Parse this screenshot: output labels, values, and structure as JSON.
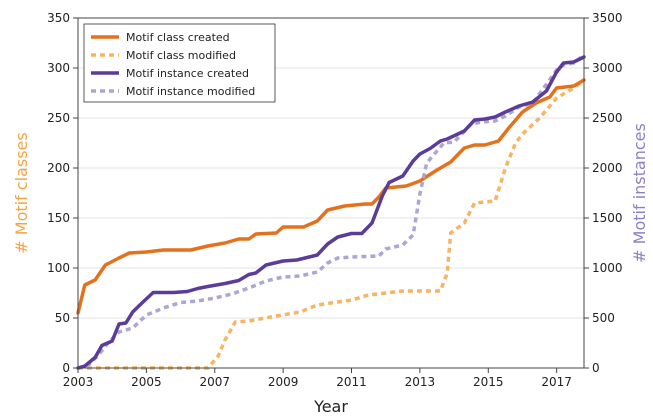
{
  "chart_data": {
    "type": "line",
    "xlabel": "Year",
    "ylabel_left": "# Motif classes",
    "ylabel_right": "# Motif instances",
    "xlim": [
      2003,
      2017.8
    ],
    "ylim_left": [
      0,
      350
    ],
    "ylim_right": [
      0,
      3500
    ],
    "x_ticks": [
      2003,
      2005,
      2007,
      2009,
      2011,
      2013,
      2015,
      2017
    ],
    "y_ticks_left": [
      0,
      50,
      100,
      150,
      200,
      250,
      300,
      350
    ],
    "y_ticks_right": [
      0,
      500,
      1000,
      1500,
      2000,
      2500,
      3000,
      3500
    ],
    "grid": "horizontal",
    "legend_position": "top-left",
    "colors": {
      "class_created": "#e4711c",
      "class_modified": "#f5b563",
      "instance_created": "#5b3c98",
      "instance_modified": "#aba6d3",
      "left_axis_label": "#f2a446",
      "right_axis_label": "#8f7fc6",
      "grid": "#e3e3e3"
    },
    "series": [
      {
        "name": "Motif class created",
        "axis": "left",
        "style": "solid",
        "color": "#e4711c",
        "points": [
          [
            2003.0,
            55
          ],
          [
            2003.2,
            83
          ],
          [
            2003.5,
            88
          ],
          [
            2003.8,
            103
          ],
          [
            2004.2,
            110
          ],
          [
            2004.5,
            115
          ],
          [
            2005.0,
            116
          ],
          [
            2005.5,
            118
          ],
          [
            2006.3,
            118
          ],
          [
            2006.8,
            122
          ],
          [
            2007.3,
            125
          ],
          [
            2007.7,
            129
          ],
          [
            2008.0,
            129
          ],
          [
            2008.2,
            134
          ],
          [
            2008.8,
            135
          ],
          [
            2009.0,
            141
          ],
          [
            2009.6,
            141
          ],
          [
            2010.0,
            147
          ],
          [
            2010.3,
            158
          ],
          [
            2010.8,
            162
          ],
          [
            2011.4,
            164
          ],
          [
            2011.6,
            164
          ],
          [
            2011.8,
            171
          ],
          [
            2012.0,
            180
          ],
          [
            2012.6,
            182
          ],
          [
            2013.0,
            187
          ],
          [
            2013.5,
            198
          ],
          [
            2013.9,
            206
          ],
          [
            2014.3,
            220
          ],
          [
            2014.6,
            223
          ],
          [
            2014.9,
            223
          ],
          [
            2015.3,
            227
          ],
          [
            2015.6,
            240
          ],
          [
            2016.0,
            256
          ],
          [
            2016.4,
            265
          ],
          [
            2016.8,
            271
          ],
          [
            2017.0,
            280
          ],
          [
            2017.5,
            282
          ],
          [
            2017.8,
            288
          ]
        ]
      },
      {
        "name": "Motif class modified",
        "axis": "left",
        "style": "dashed",
        "color": "#f5b563",
        "points": [
          [
            2003.0,
            0
          ],
          [
            2006.8,
            0
          ],
          [
            2007.1,
            12
          ],
          [
            2007.3,
            28
          ],
          [
            2007.6,
            46
          ],
          [
            2008.0,
            47
          ],
          [
            2008.8,
            52
          ],
          [
            2009.5,
            56
          ],
          [
            2010.0,
            63
          ],
          [
            2011.0,
            68
          ],
          [
            2011.5,
            73
          ],
          [
            2012.0,
            75
          ],
          [
            2012.5,
            77
          ],
          [
            2013.0,
            77
          ],
          [
            2013.6,
            77
          ],
          [
            2013.8,
            95
          ],
          [
            2013.9,
            135
          ],
          [
            2014.3,
            145
          ],
          [
            2014.6,
            165
          ],
          [
            2015.2,
            167
          ],
          [
            2015.5,
            200
          ],
          [
            2015.8,
            225
          ],
          [
            2016.0,
            234
          ],
          [
            2016.5,
            250
          ],
          [
            2016.8,
            262
          ],
          [
            2017.0,
            270
          ],
          [
            2017.5,
            280
          ],
          [
            2017.8,
            288
          ]
        ]
      },
      {
        "name": "Motif instance created",
        "axis": "right",
        "style": "solid",
        "color": "#5b3c98",
        "points": [
          [
            2003.0,
            0
          ],
          [
            2003.2,
            20
          ],
          [
            2003.5,
            105
          ],
          [
            2003.7,
            225
          ],
          [
            2004.0,
            270
          ],
          [
            2004.2,
            440
          ],
          [
            2004.4,
            450
          ],
          [
            2004.6,
            560
          ],
          [
            2004.9,
            660
          ],
          [
            2005.2,
            755
          ],
          [
            2005.8,
            755
          ],
          [
            2006.2,
            765
          ],
          [
            2006.5,
            795
          ],
          [
            2006.8,
            815
          ],
          [
            2007.3,
            845
          ],
          [
            2007.7,
            875
          ],
          [
            2008.0,
            935
          ],
          [
            2008.2,
            950
          ],
          [
            2008.5,
            1030
          ],
          [
            2009.0,
            1070
          ],
          [
            2009.4,
            1080
          ],
          [
            2009.7,
            1105
          ],
          [
            2010.0,
            1130
          ],
          [
            2010.3,
            1240
          ],
          [
            2010.6,
            1310
          ],
          [
            2011.0,
            1345
          ],
          [
            2011.3,
            1345
          ],
          [
            2011.6,
            1450
          ],
          [
            2011.9,
            1720
          ],
          [
            2012.1,
            1855
          ],
          [
            2012.5,
            1920
          ],
          [
            2012.8,
            2070
          ],
          [
            2013.0,
            2140
          ],
          [
            2013.3,
            2195
          ],
          [
            2013.6,
            2270
          ],
          [
            2013.8,
            2290
          ],
          [
            2014.3,
            2370
          ],
          [
            2014.6,
            2480
          ],
          [
            2014.9,
            2490
          ],
          [
            2015.2,
            2510
          ],
          [
            2015.5,
            2560
          ],
          [
            2015.9,
            2620
          ],
          [
            2016.3,
            2660
          ],
          [
            2016.7,
            2770
          ],
          [
            2017.0,
            2960
          ],
          [
            2017.2,
            3050
          ],
          [
            2017.5,
            3060
          ],
          [
            2017.8,
            3110
          ]
        ]
      },
      {
        "name": "Motif instance modified",
        "axis": "right",
        "style": "dashed",
        "color": "#aba6d3",
        "points": [
          [
            2003.0,
            0
          ],
          [
            2003.3,
            30
          ],
          [
            2003.6,
            130
          ],
          [
            2003.9,
            260
          ],
          [
            2004.2,
            360
          ],
          [
            2004.6,
            400
          ],
          [
            2005.0,
            530
          ],
          [
            2005.5,
            600
          ],
          [
            2006.0,
            655
          ],
          [
            2006.5,
            670
          ],
          [
            2007.0,
            700
          ],
          [
            2007.5,
            740
          ],
          [
            2008.0,
            800
          ],
          [
            2008.5,
            870
          ],
          [
            2009.0,
            910
          ],
          [
            2009.5,
            920
          ],
          [
            2010.0,
            960
          ],
          [
            2010.3,
            1050
          ],
          [
            2010.6,
            1100
          ],
          [
            2011.0,
            1110
          ],
          [
            2011.8,
            1120
          ],
          [
            2012.0,
            1190
          ],
          [
            2012.5,
            1230
          ],
          [
            2012.8,
            1330
          ],
          [
            2013.0,
            1740
          ],
          [
            2013.2,
            2050
          ],
          [
            2013.4,
            2130
          ],
          [
            2013.7,
            2250
          ],
          [
            2014.0,
            2260
          ],
          [
            2014.5,
            2440
          ],
          [
            2014.8,
            2460
          ],
          [
            2015.2,
            2470
          ],
          [
            2015.5,
            2520
          ],
          [
            2015.9,
            2610
          ],
          [
            2016.3,
            2650
          ],
          [
            2016.6,
            2790
          ],
          [
            2017.0,
            2980
          ],
          [
            2017.2,
            3030
          ],
          [
            2017.5,
            3050
          ],
          [
            2017.8,
            3130
          ]
        ]
      }
    ]
  }
}
